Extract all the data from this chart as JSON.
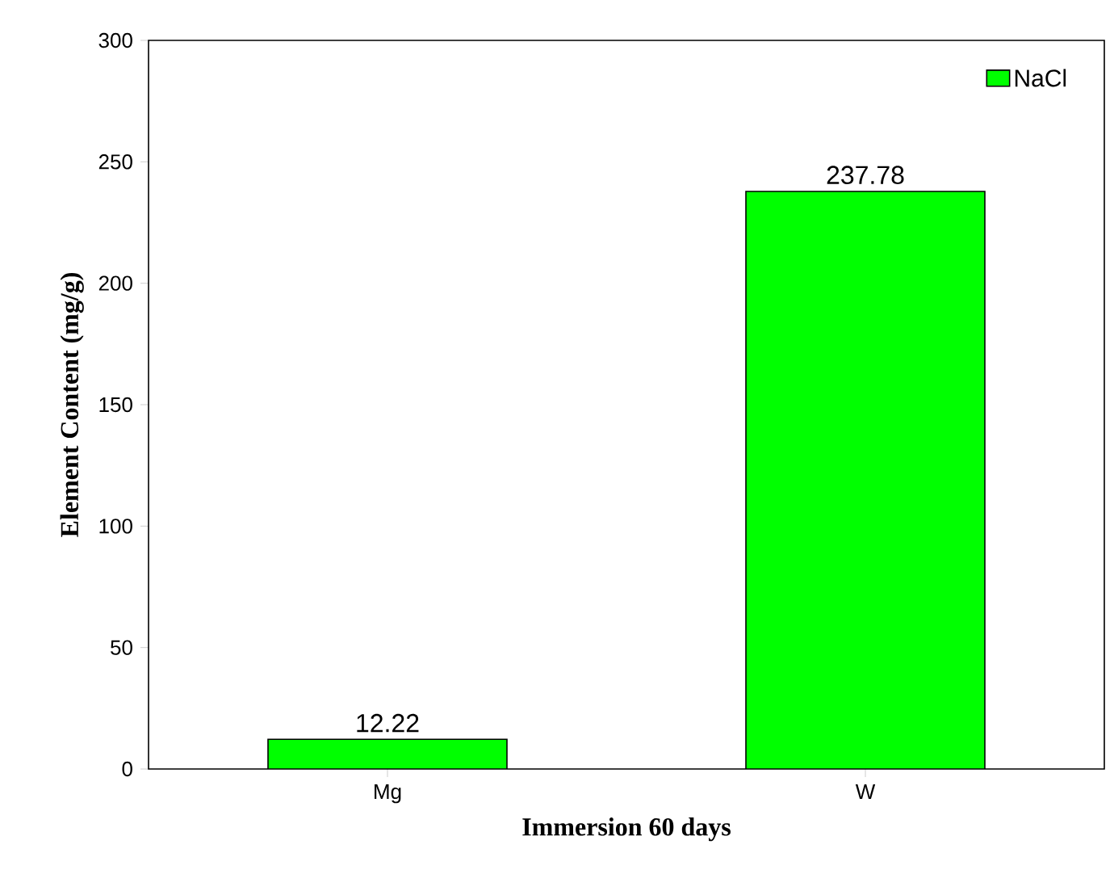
{
  "chart_data": {
    "type": "bar",
    "xlabel": "Immersion 60 days",
    "ylabel": "Element Content (mg/g)",
    "categories": [
      "Mg",
      "W"
    ],
    "series": [
      {
        "name": "NaCl",
        "color": "#00ff00",
        "values": [
          12.22,
          237.78
        ]
      }
    ],
    "ylim": [
      0,
      300
    ],
    "yticks": [
      0,
      50,
      100,
      150,
      200,
      250,
      300
    ],
    "data_labels": true,
    "legend": "top right",
    "grid": false
  }
}
